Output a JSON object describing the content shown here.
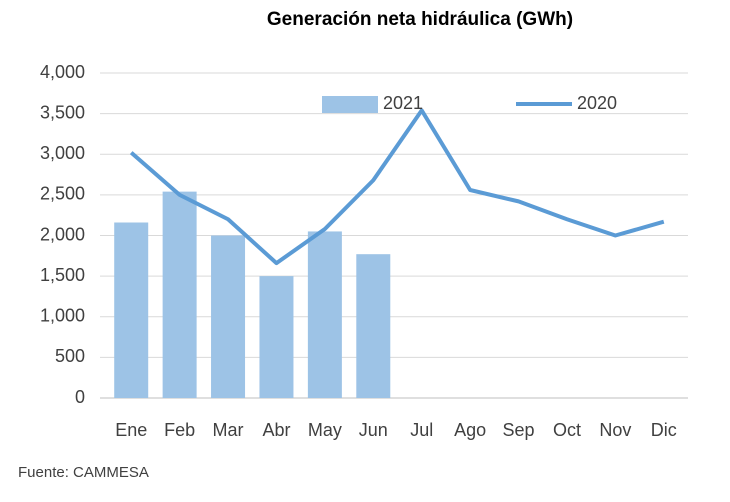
{
  "chart_data": {
    "type": "combo",
    "title": "Generación neta hidráulica (GWh)",
    "source": "Fuente: CAMMESA",
    "categories": [
      "Ene",
      "Feb",
      "Mar",
      "Abr",
      "May",
      "Jun",
      "Jul",
      "Ago",
      "Sep",
      "Oct",
      "Nov",
      "Dic"
    ],
    "series": [
      {
        "name": "2021",
        "type": "bar",
        "color": "#9dc3e6",
        "values": [
          2160,
          2540,
          2000,
          1500,
          2050,
          1770,
          null,
          null,
          null,
          null,
          null,
          null
        ]
      },
      {
        "name": "2020",
        "type": "line",
        "color": "#5b9bd5",
        "values": [
          3020,
          2500,
          2200,
          1660,
          2080,
          2680,
          3540,
          2560,
          2420,
          2200,
          2000,
          2170
        ]
      }
    ],
    "ylim": [
      0,
      4000
    ],
    "yticks": [
      0,
      {
        "value": 500,
        "label": "500"
      },
      {
        "value": 1000,
        "label": "1,000"
      },
      {
        "value": 1500,
        "label": "1,500"
      },
      {
        "value": 2000,
        "label": "2,000"
      },
      {
        "value": 2500,
        "label": "2,500"
      },
      {
        "value": 3000,
        "label": "3,000"
      },
      {
        "value": 3500,
        "label": "3,500"
      },
      {
        "value": 4000,
        "label": "4,000"
      }
    ],
    "grid": true
  }
}
